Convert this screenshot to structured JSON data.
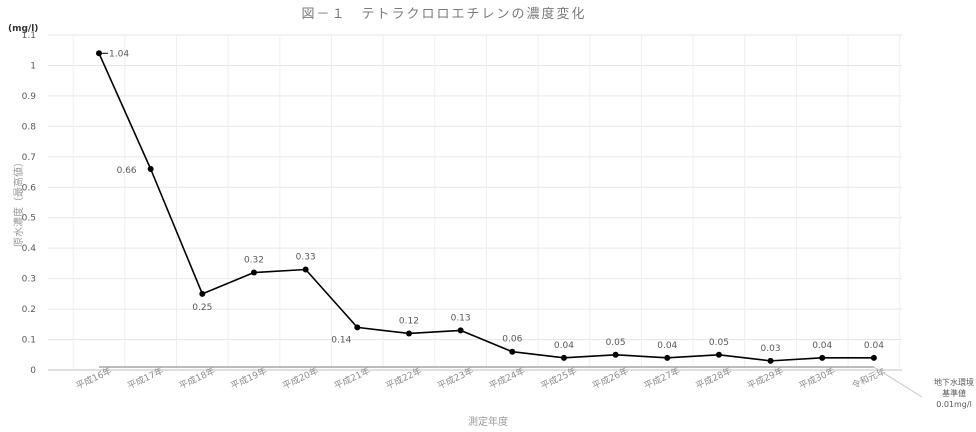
{
  "chart_data": {
    "type": "line",
    "title": "図－１　テトラクロロエチレンの濃度変化",
    "unit": "(mg/l)",
    "xlabel": "測定年度",
    "ylabel": "原水濃度（最高値）",
    "ylim": [
      0,
      1.1
    ],
    "yticks": [
      "0",
      "0.1",
      "0.2",
      "0.3",
      "0.4",
      "0.5",
      "0.6",
      "0.7",
      "0.8",
      "0.9",
      "1",
      "1.1"
    ],
    "grid": true,
    "categories": [
      "平成16年",
      "平成17年",
      "平成18年",
      "平成19年",
      "平成20年",
      "平成21年",
      "平成22年",
      "平成23年",
      "平成24年",
      "平成25年",
      "平成26年",
      "平成27年",
      "平成28年",
      "平成29年",
      "平成30年",
      "令和元年"
    ],
    "series": [
      {
        "values": [
          1.04,
          0.66,
          0.25,
          0.32,
          0.33,
          0.14,
          0.12,
          0.13,
          0.06,
          0.04,
          0.05,
          0.04,
          0.05,
          0.03,
          0.04,
          0.04
        ],
        "labels": [
          "1.04",
          "0.66",
          "0.25",
          "0.32",
          "0.33",
          "0.14",
          "0.12",
          "0.13",
          "0.06",
          "0.04",
          "0.05",
          "0.04",
          "0.05",
          "0.03",
          "0.04",
          "0.04"
        ],
        "color": "#000000"
      }
    ],
    "reference_line": {
      "value": 0.01,
      "label_lines": [
        "地下水環境",
        "基準値",
        "0.01mg/l"
      ],
      "color": "#a6a6a6"
    }
  }
}
